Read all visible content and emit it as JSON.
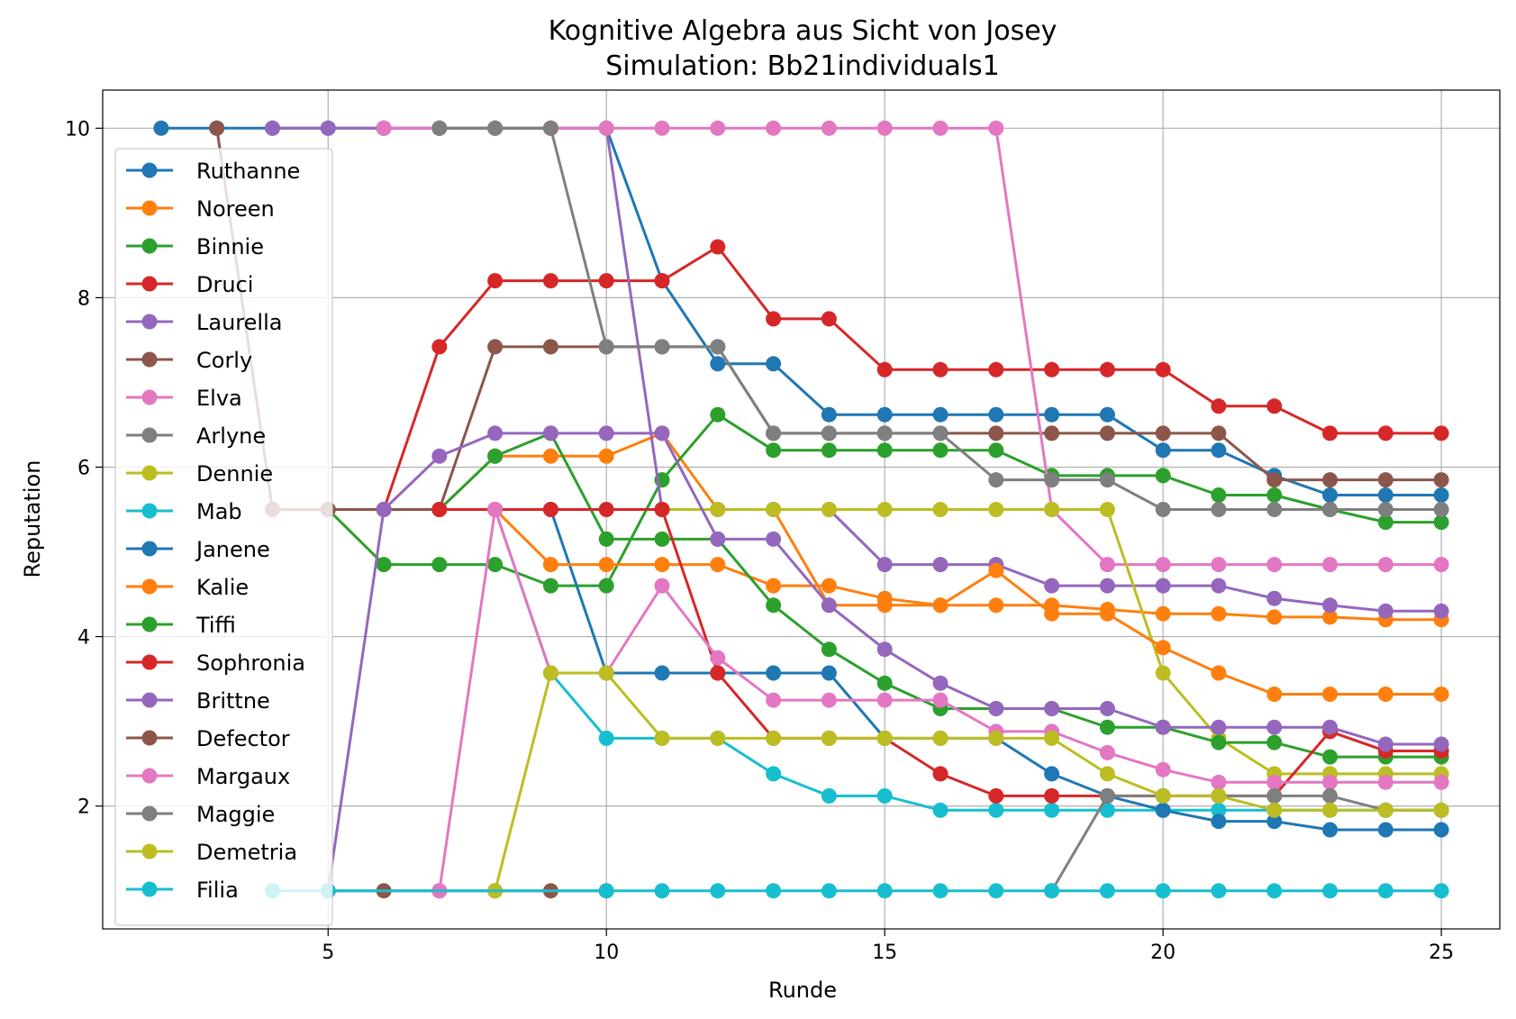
{
  "chart_data": {
    "type": "line",
    "title": "Kognitive Algebra aus Sicht von Josey",
    "subtitle": "Simulation: Bb21individuals1",
    "xlabel": "Runde",
    "ylabel": "Reputation",
    "xlim": [
      0.95,
      26.05
    ],
    "ylim": [
      0.55,
      10.45
    ],
    "xticks": [
      5,
      10,
      15,
      20,
      25
    ],
    "yticks": [
      2,
      4,
      6,
      8,
      10
    ],
    "grid": true,
    "legend_position": "upper-left",
    "series": [
      {
        "name": "Ruthanne",
        "color": "#1f77b4",
        "x": [
          2,
          3,
          4,
          5,
          6,
          7,
          8,
          9,
          10,
          11,
          12,
          13,
          14,
          15,
          16,
          17,
          18,
          19,
          20,
          21,
          22,
          23,
          24,
          25
        ],
        "y": [
          10,
          10,
          10,
          10,
          10,
          10,
          10,
          10,
          10,
          8.2,
          7.22,
          7.22,
          6.62,
          6.62,
          6.62,
          6.62,
          6.62,
          6.62,
          6.2,
          6.2,
          5.9,
          5.67,
          5.67,
          5.67
        ]
      },
      {
        "name": "Noreen",
        "color": "#ff7f0e",
        "x": [
          4,
          5,
          6,
          7,
          8,
          9,
          10,
          11,
          12,
          13,
          14,
          15,
          16,
          17,
          18,
          19,
          20,
          21,
          22,
          23,
          24,
          25
        ],
        "y": [
          5.5,
          5.5,
          5.5,
          5.5,
          6.13,
          6.13,
          6.13,
          6.4,
          5.5,
          5.5,
          4.37,
          4.37,
          4.37,
          4.37,
          4.37,
          4.32,
          4.27,
          4.27,
          4.23,
          4.23,
          4.2,
          4.2
        ]
      },
      {
        "name": "Binnie",
        "color": "#2ca02c",
        "x": [
          5,
          6,
          7,
          8,
          9,
          10,
          11,
          12,
          13,
          14,
          15,
          16,
          17,
          18,
          19,
          20,
          21,
          22,
          23,
          24,
          25
        ],
        "y": [
          5.5,
          4.85,
          4.85,
          4.85,
          4.6,
          4.6,
          5.85,
          6.62,
          6.2,
          6.2,
          6.2,
          6.2,
          6.2,
          5.9,
          5.9,
          5.9,
          5.67,
          5.67,
          5.5,
          5.35,
          5.35
        ]
      },
      {
        "name": "Druci",
        "color": "#d62728",
        "x": [
          6,
          7,
          8,
          9,
          10,
          11,
          12,
          13,
          14,
          15,
          16,
          17,
          18,
          19,
          20,
          21,
          22,
          23,
          24,
          25
        ],
        "y": [
          5.5,
          7.42,
          8.2,
          8.2,
          8.2,
          8.2,
          8.6,
          7.75,
          7.75,
          7.15,
          7.15,
          7.15,
          7.15,
          7.15,
          7.15,
          6.72,
          6.72,
          6.4,
          6.4,
          6.4
        ]
      },
      {
        "name": "Laurella",
        "color": "#9467bd",
        "x": [
          4,
          5,
          6,
          7,
          8,
          9,
          10,
          11,
          12,
          13,
          14,
          15,
          16,
          17,
          18,
          19,
          20,
          21,
          22,
          23,
          24,
          25
        ],
        "y": [
          10,
          10,
          10,
          10,
          10,
          10,
          10,
          5.5,
          5.5,
          5.5,
          5.5,
          4.85,
          4.85,
          4.85,
          4.6,
          4.6,
          4.6,
          4.6,
          4.45,
          4.37,
          4.3,
          4.3
        ]
      },
      {
        "name": "Corly",
        "color": "#8c564b",
        "x": [
          3,
          4,
          5,
          6,
          7,
          8,
          9,
          10,
          11,
          12,
          13,
          14,
          15,
          16,
          17,
          18,
          19,
          20,
          21,
          22,
          23,
          24,
          25
        ],
        "y": [
          10,
          5.5,
          5.5,
          5.5,
          5.5,
          7.42,
          7.42,
          7.42,
          7.42,
          7.42,
          6.4,
          6.4,
          6.4,
          6.4,
          6.4,
          6.4,
          6.4,
          6.4,
          6.4,
          5.85,
          5.85,
          5.85,
          5.85
        ]
      },
      {
        "name": "Elva",
        "color": "#e377c2",
        "x": [
          6,
          7,
          8,
          9,
          10,
          11,
          12,
          13,
          14,
          15,
          16,
          17,
          18,
          19,
          20,
          21,
          22,
          23,
          24,
          25
        ],
        "y": [
          10,
          10,
          10,
          10,
          10,
          10,
          10,
          10,
          10,
          10,
          10,
          10,
          5.5,
          4.85,
          4.85,
          4.85,
          4.85,
          4.85,
          4.85,
          4.85
        ]
      },
      {
        "name": "Arlyne",
        "color": "#7f7f7f",
        "x": [
          7,
          8,
          9,
          10,
          11,
          12,
          13,
          14,
          15,
          16,
          17,
          18,
          19,
          20,
          21,
          22,
          23,
          24,
          25
        ],
        "y": [
          10,
          10,
          10,
          7.42,
          7.42,
          7.42,
          6.4,
          6.4,
          6.4,
          6.4,
          5.85,
          5.85,
          5.85,
          5.5,
          5.5,
          5.5,
          5.5,
          5.5,
          5.5
        ]
      },
      {
        "name": "Dennie",
        "color": "#bcbd22",
        "x": [
          11,
          12,
          13,
          14,
          15,
          16,
          17,
          18,
          19,
          20,
          21,
          22,
          23,
          24,
          25
        ],
        "y": [
          5.5,
          5.5,
          5.5,
          5.5,
          5.5,
          5.5,
          5.5,
          5.5,
          5.5,
          3.57,
          2.8,
          2.38,
          2.38,
          2.38,
          2.38
        ]
      },
      {
        "name": "Mab",
        "color": "#17becf",
        "x": [
          8,
          9,
          10,
          11,
          12,
          13,
          14,
          15,
          16,
          17,
          18,
          19,
          20,
          21,
          22,
          23,
          24,
          25
        ],
        "y": [
          5.5,
          3.57,
          2.8,
          2.8,
          2.8,
          2.38,
          2.12,
          2.12,
          1.95,
          1.95,
          1.95,
          1.95,
          1.95,
          1.95,
          1.95,
          1.95,
          1.95,
          1.95
        ]
      },
      {
        "name": "Janene",
        "color": "#1f77b4",
        "x": [
          9,
          10,
          11,
          12,
          13,
          14,
          15,
          16,
          17,
          18,
          19,
          20,
          21,
          22,
          23,
          24,
          25
        ],
        "y": [
          5.5,
          3.57,
          3.57,
          3.57,
          3.57,
          3.57,
          2.8,
          2.8,
          2.8,
          2.38,
          2.12,
          1.95,
          1.82,
          1.82,
          1.72,
          1.72,
          1.72
        ]
      },
      {
        "name": "Kalie",
        "color": "#ff7f0e",
        "x": [
          8,
          9,
          10,
          11,
          12,
          13,
          14,
          15,
          16,
          17,
          18,
          19,
          20,
          21,
          22,
          23,
          24,
          25
        ],
        "y": [
          5.5,
          4.85,
          4.85,
          4.85,
          4.85,
          4.6,
          4.6,
          4.45,
          4.37,
          4.78,
          4.27,
          4.27,
          3.87,
          3.57,
          3.32,
          3.32,
          3.32,
          3.32
        ]
      },
      {
        "name": "Tiffi",
        "color": "#2ca02c",
        "x": [
          7,
          8,
          9,
          10,
          11,
          12,
          13,
          14,
          15,
          16,
          17,
          18,
          19,
          20,
          21,
          22,
          23,
          24,
          25
        ],
        "y": [
          5.5,
          6.13,
          6.4,
          5.15,
          5.15,
          5.15,
          4.37,
          3.85,
          3.45,
          3.15,
          3.15,
          3.15,
          2.93,
          2.93,
          2.75,
          2.75,
          2.58,
          2.58,
          2.58
        ]
      },
      {
        "name": "Sophronia",
        "color": "#d62728",
        "x": [
          7,
          8,
          9,
          10,
          11,
          12,
          13,
          14,
          15,
          16,
          17,
          18,
          19,
          20,
          21,
          22,
          23,
          24,
          25
        ],
        "y": [
          5.5,
          5.5,
          5.5,
          5.5,
          5.5,
          3.57,
          2.8,
          2.8,
          2.8,
          2.38,
          2.12,
          2.12,
          2.12,
          2.12,
          2.12,
          2.12,
          2.88,
          2.65,
          2.65
        ]
      },
      {
        "name": "Brittne",
        "color": "#9467bd",
        "x": [
          5,
          6,
          7,
          8,
          9,
          10,
          11,
          12,
          13,
          14,
          15,
          16,
          17,
          18,
          19,
          20,
          21,
          22,
          23,
          24,
          25
        ],
        "y": [
          1,
          5.5,
          6.13,
          6.4,
          6.4,
          6.4,
          6.4,
          5.15,
          5.15,
          4.37,
          3.85,
          3.45,
          3.15,
          3.15,
          3.15,
          2.93,
          2.93,
          2.93,
          2.93,
          2.73,
          2.73
        ]
      },
      {
        "name": "Defector",
        "color": "#8c564b",
        "x": [
          5,
          6,
          7,
          8,
          9,
          10
        ],
        "y": [
          1,
          1,
          1,
          1,
          1,
          1
        ]
      },
      {
        "name": "Margaux",
        "color": "#e377c2",
        "x": [
          7,
          8,
          9,
          10,
          11,
          12,
          13,
          14,
          15,
          16,
          17,
          18,
          19,
          20,
          21,
          22,
          23,
          24,
          25
        ],
        "y": [
          1,
          5.5,
          3.57,
          3.57,
          4.6,
          3.75,
          3.25,
          3.25,
          3.25,
          3.25,
          2.88,
          2.88,
          2.63,
          2.43,
          2.28,
          2.28,
          2.28,
          2.28,
          2.28
        ]
      },
      {
        "name": "Maggie",
        "color": "#7f7f7f",
        "x": [
          18,
          19,
          20,
          21,
          22,
          23,
          24,
          25
        ],
        "y": [
          1,
          2.12,
          2.12,
          2.12,
          2.12,
          2.12,
          1.95,
          1.95
        ]
      },
      {
        "name": "Demetria",
        "color": "#bcbd22",
        "x": [
          8,
          9,
          10,
          11,
          12,
          13,
          14,
          15,
          16,
          17,
          18,
          19,
          20,
          21,
          22,
          23,
          24,
          25
        ],
        "y": [
          1,
          3.57,
          3.57,
          2.8,
          2.8,
          2.8,
          2.8,
          2.8,
          2.8,
          2.8,
          2.8,
          2.38,
          2.12,
          2.12,
          1.95,
          1.95,
          1.95,
          1.95
        ]
      },
      {
        "name": "Filia",
        "color": "#17becf",
        "x": [
          4,
          5,
          10,
          11,
          12,
          13,
          14,
          15,
          16,
          17,
          18,
          19,
          20,
          21,
          22,
          23,
          24,
          25
        ],
        "y": [
          1,
          1,
          1,
          1,
          1,
          1,
          1,
          1,
          1,
          1,
          1,
          1,
          1,
          1,
          1,
          1,
          1,
          1
        ]
      }
    ]
  }
}
